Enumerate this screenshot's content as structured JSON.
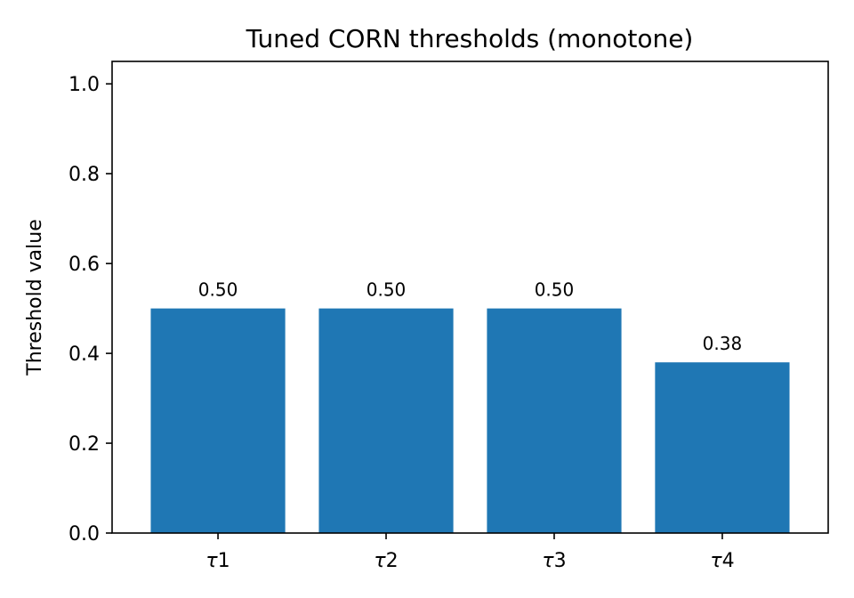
{
  "chart_data": {
    "type": "bar",
    "title": "Tuned CORN thresholds (monotone)",
    "xlabel": "",
    "ylabel": "Threshold value",
    "categories": [
      "τ1",
      "τ2",
      "τ3",
      "τ4"
    ],
    "values": [
      0.5,
      0.5,
      0.5,
      0.38
    ],
    "data_labels": [
      "0.50",
      "0.50",
      "0.50",
      "0.38"
    ],
    "ylim": [
      0,
      1.05
    ],
    "yticks": [
      0.0,
      0.2,
      0.4,
      0.6,
      0.8,
      1.0
    ],
    "ytick_labels": [
      "0.0",
      "0.2",
      "0.4",
      "0.6",
      "0.8",
      "1.0"
    ],
    "grid": false,
    "bar_color": "#1f77b4"
  }
}
